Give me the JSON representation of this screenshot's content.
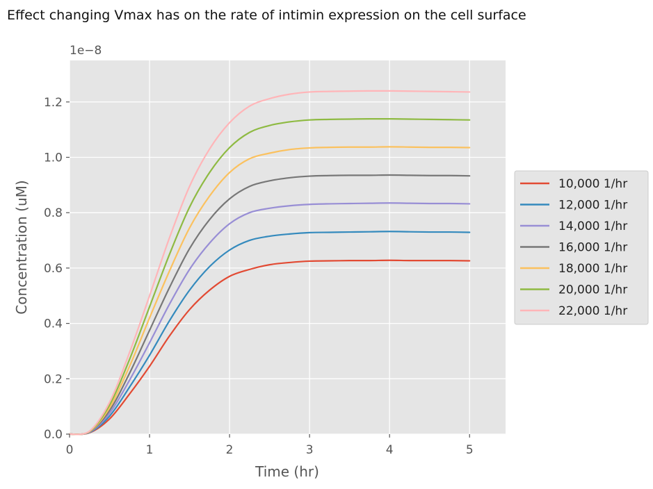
{
  "chart_data": {
    "type": "line",
    "title": "Effect changing Vmax has on the rate of intimin expression on the cell surface",
    "xlabel": "Time (hr)",
    "ylabel": "Concentration (uM)",
    "offset_text": "1e−8",
    "xlim": [
      0,
      5.45
    ],
    "ylim": [
      0,
      1.35
    ],
    "x_ticks": [
      0,
      1,
      2,
      3,
      4,
      5
    ],
    "x_tick_labels": [
      "0",
      "1",
      "2",
      "3",
      "4",
      "5"
    ],
    "y_ticks": [
      0,
      0.2,
      0.4,
      0.6,
      0.8,
      1.0,
      1.2
    ],
    "y_tick_labels": [
      "0.0",
      "0.2",
      "0.4",
      "0.6",
      "0.8",
      "1.0",
      "1.2"
    ],
    "grid": true,
    "legend_position": "center-right outside",
    "x": [
      0,
      0.25,
      0.5,
      0.75,
      1,
      1.25,
      1.5,
      1.75,
      2,
      2.25,
      2.5,
      2.75,
      3,
      3.25,
      3.5,
      3.75,
      4,
      4.25,
      4.5,
      4.75,
      5
    ],
    "series": [
      {
        "name": "10,000 1/hr",
        "color": "#E24A33",
        "values": [
          0,
          0.005,
          0.055,
          0.145,
          0.245,
          0.355,
          0.45,
          0.52,
          0.57,
          0.595,
          0.612,
          0.62,
          0.625,
          0.626,
          0.627,
          0.627,
          0.628,
          0.627,
          0.627,
          0.627,
          0.626
        ]
      },
      {
        "name": "12,000 1/hr",
        "color": "#348ABD",
        "values": [
          0,
          0.006,
          0.065,
          0.17,
          0.285,
          0.41,
          0.52,
          0.605,
          0.665,
          0.7,
          0.715,
          0.723,
          0.728,
          0.729,
          0.73,
          0.731,
          0.732,
          0.731,
          0.73,
          0.73,
          0.729
        ]
      },
      {
        "name": "14,000 1/hr",
        "color": "#988ED5",
        "values": [
          0,
          0.007,
          0.075,
          0.195,
          0.33,
          0.47,
          0.595,
          0.69,
          0.76,
          0.8,
          0.816,
          0.825,
          0.83,
          0.832,
          0.833,
          0.834,
          0.835,
          0.834,
          0.833,
          0.833,
          0.832
        ]
      },
      {
        "name": "16,000 1/hr",
        "color": "#777777",
        "values": [
          0,
          0.008,
          0.085,
          0.22,
          0.375,
          0.53,
          0.67,
          0.775,
          0.85,
          0.895,
          0.915,
          0.926,
          0.932,
          0.934,
          0.935,
          0.935,
          0.936,
          0.935,
          0.934,
          0.934,
          0.933
        ]
      },
      {
        "name": "18,000 1/hr",
        "color": "#FBC15E",
        "values": [
          0,
          0.009,
          0.095,
          0.245,
          0.42,
          0.59,
          0.745,
          0.86,
          0.945,
          0.995,
          1.015,
          1.028,
          1.034,
          1.036,
          1.037,
          1.037,
          1.038,
          1.037,
          1.036,
          1.036,
          1.035
        ]
      },
      {
        "name": "20,000 1/hr",
        "color": "#8EBA42",
        "values": [
          0,
          0.01,
          0.105,
          0.27,
          0.46,
          0.65,
          0.82,
          0.945,
          1.035,
          1.09,
          1.115,
          1.128,
          1.135,
          1.137,
          1.138,
          1.139,
          1.139,
          1.138,
          1.137,
          1.136,
          1.135
        ]
      },
      {
        "name": "22,000 1/hr",
        "color": "#FFB5B8",
        "values": [
          0,
          0.011,
          0.115,
          0.295,
          0.5,
          0.71,
          0.895,
          1.03,
          1.125,
          1.185,
          1.212,
          1.228,
          1.236,
          1.238,
          1.239,
          1.24,
          1.24,
          1.239,
          1.238,
          1.237,
          1.236
        ]
      }
    ]
  }
}
